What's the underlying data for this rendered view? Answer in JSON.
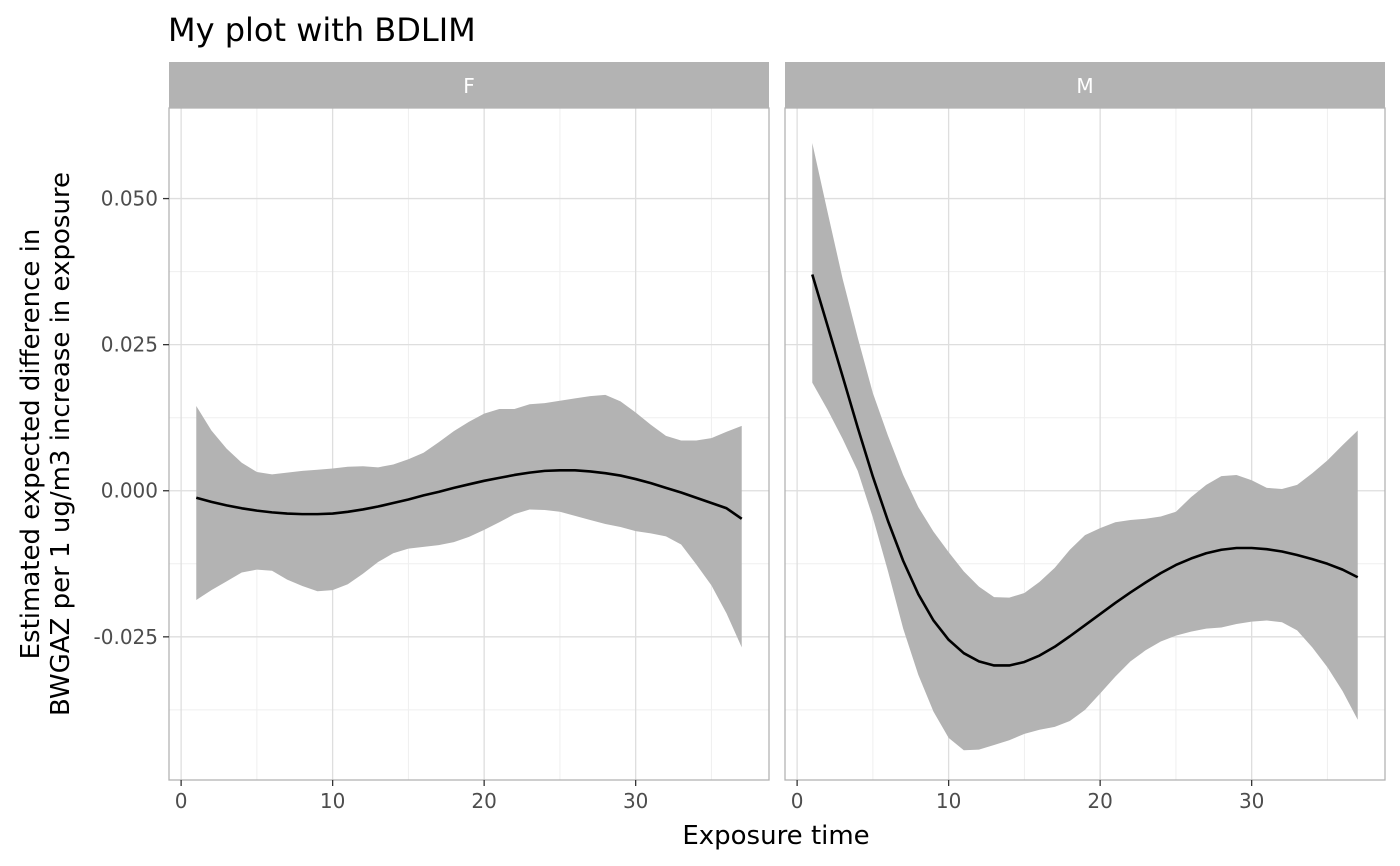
{
  "chart_data": {
    "type": "line",
    "title": "My plot with BDLIM",
    "xlabel": "Exposure time",
    "ylabel_line1": "Estimated expected difference in",
    "ylabel_line2": "BWGAZ per 1 ug/m3 increase in exposure",
    "xlim": [
      -0.8,
      38.8
    ],
    "ylim": [
      -0.0495,
      0.0655
    ],
    "x_ticks": [
      0,
      10,
      20,
      30
    ],
    "x_tick_labels": [
      "0",
      "10",
      "20",
      "30"
    ],
    "y_ticks": [
      -0.025,
      0.0,
      0.025,
      0.05
    ],
    "y_tick_labels": [
      "-0.025",
      "0.000",
      "0.025",
      "0.050"
    ],
    "grid": true,
    "colors": {
      "line": "#000000",
      "ribbon": "#b3b3b3",
      "strip": "#b3b3b3",
      "grid_major": "#dedede",
      "grid_minor": "#efefef",
      "border": "#b3b3b3"
    },
    "panels": [
      {
        "label": "F",
        "x": [
          1,
          2,
          3,
          4,
          5,
          6,
          7,
          8,
          9,
          10,
          11,
          12,
          13,
          14,
          15,
          16,
          17,
          18,
          19,
          20,
          21,
          22,
          23,
          24,
          25,
          26,
          27,
          28,
          29,
          30,
          31,
          32,
          33,
          34,
          35,
          36,
          37
        ],
        "estimate": [
          -0.0012,
          -0.0019,
          -0.0025,
          -0.003,
          -0.0034,
          -0.0037,
          -0.0039,
          -0.004,
          -0.004,
          -0.0039,
          -0.0036,
          -0.0032,
          -0.0027,
          -0.0021,
          -0.0015,
          -0.0008,
          -0.0002,
          0.0005,
          0.0011,
          0.0017,
          0.0022,
          0.0027,
          0.0031,
          0.0034,
          0.0035,
          0.0035,
          0.0033,
          0.003,
          0.0026,
          0.002,
          0.0013,
          0.0005,
          -0.0003,
          -0.0012,
          -0.0021,
          -0.003,
          -0.0048
        ],
        "lower": [
          -0.0187,
          -0.017,
          -0.0155,
          -0.014,
          -0.0135,
          -0.0137,
          -0.0152,
          -0.0163,
          -0.0172,
          -0.017,
          -0.016,
          -0.0142,
          -0.0122,
          -0.0107,
          -0.0099,
          -0.0096,
          -0.0093,
          -0.0088,
          -0.0079,
          -0.0067,
          -0.0054,
          -0.004,
          -0.0032,
          -0.0033,
          -0.0036,
          -0.0043,
          -0.005,
          -0.0057,
          -0.0062,
          -0.0069,
          -0.0073,
          -0.0078,
          -0.0092,
          -0.0126,
          -0.0162,
          -0.021,
          -0.0268
        ],
        "upper": [
          0.0145,
          0.0103,
          0.0072,
          0.0048,
          0.0032,
          0.0028,
          0.0031,
          0.0034,
          0.0036,
          0.0038,
          0.0041,
          0.0042,
          0.004,
          0.0045,
          0.0054,
          0.0065,
          0.0083,
          0.0102,
          0.0118,
          0.0132,
          0.014,
          0.014,
          0.0148,
          0.015,
          0.0154,
          0.0158,
          0.0162,
          0.0164,
          0.0153,
          0.0134,
          0.0113,
          0.0094,
          0.0086,
          0.0086,
          0.009,
          0.0101,
          0.0111
        ]
      },
      {
        "label": "M",
        "x": [
          1,
          2,
          3,
          4,
          5,
          6,
          7,
          8,
          9,
          10,
          11,
          12,
          13,
          14,
          15,
          16,
          17,
          18,
          19,
          20,
          21,
          22,
          23,
          24,
          25,
          26,
          27,
          28,
          29,
          30,
          31,
          32,
          33,
          34,
          35,
          36,
          37
        ],
        "estimate": [
          0.037,
          0.0283,
          0.0196,
          0.0108,
          0.0024,
          -0.0052,
          -0.012,
          -0.0177,
          -0.0222,
          -0.0255,
          -0.0278,
          -0.0292,
          -0.0299,
          -0.0299,
          -0.0293,
          -0.0282,
          -0.0267,
          -0.0249,
          -0.023,
          -0.0211,
          -0.0192,
          -0.0174,
          -0.0157,
          -0.0141,
          -0.0127,
          -0.0116,
          -0.0107,
          -0.0101,
          -0.0098,
          -0.0098,
          -0.01,
          -0.0104,
          -0.011,
          -0.0117,
          -0.0125,
          -0.0135,
          -0.0148
        ],
        "lower": [
          0.0185,
          0.0139,
          0.0089,
          0.0034,
          -0.0046,
          -0.0138,
          -0.0236,
          -0.0315,
          -0.0378,
          -0.0423,
          -0.0444,
          -0.0443,
          -0.0435,
          -0.0427,
          -0.0416,
          -0.0409,
          -0.0404,
          -0.0394,
          -0.0375,
          -0.0347,
          -0.0318,
          -0.0292,
          -0.0273,
          -0.0258,
          -0.0248,
          -0.0241,
          -0.0236,
          -0.0234,
          -0.0228,
          -0.0224,
          -0.0222,
          -0.0225,
          -0.0239,
          -0.0268,
          -0.0302,
          -0.0343,
          -0.0392
        ],
        "upper": [
          0.0595,
          0.0478,
          0.0363,
          0.0262,
          0.0167,
          0.0094,
          0.0027,
          -0.0028,
          -0.007,
          -0.0105,
          -0.0138,
          -0.0164,
          -0.0182,
          -0.0183,
          -0.0175,
          -0.0156,
          -0.0132,
          -0.0101,
          -0.0076,
          -0.0064,
          -0.0054,
          -0.005,
          -0.0048,
          -0.0044,
          -0.0036,
          -0.0011,
          0.001,
          0.0025,
          0.0027,
          0.0018,
          0.0005,
          0.0003,
          0.001,
          0.003,
          0.0052,
          0.0078,
          0.0103
        ]
      }
    ]
  }
}
